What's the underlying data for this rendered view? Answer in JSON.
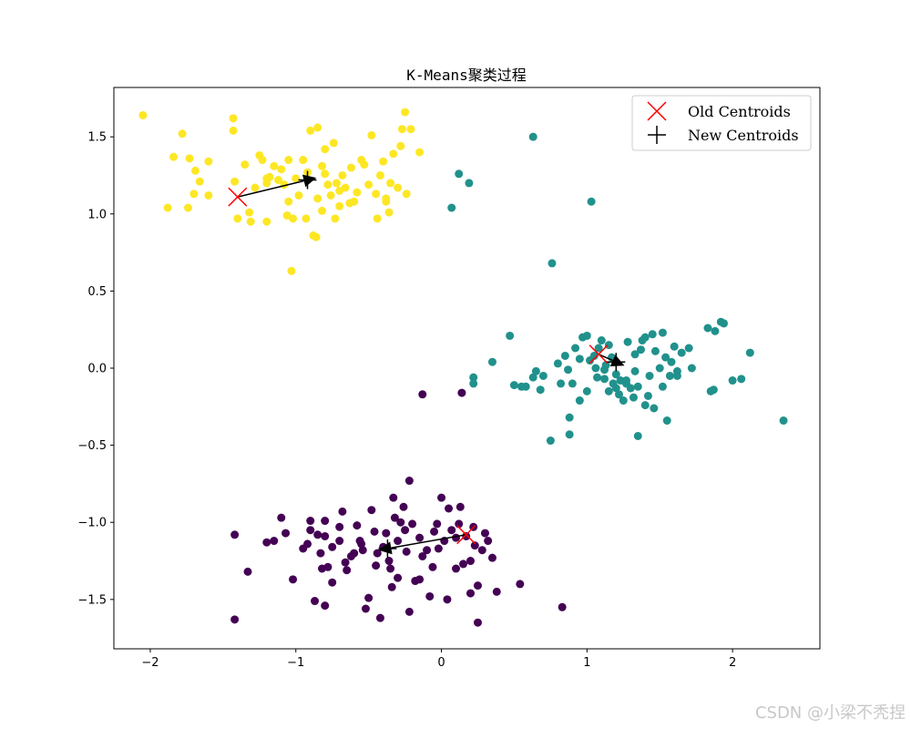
{
  "chart_data": {
    "type": "scatter",
    "title": "K-Means聚类过程",
    "xlabel": "",
    "ylabel": "",
    "xlim": [
      -2.25,
      2.6
    ],
    "ylim": [
      -1.82,
      1.82
    ],
    "xticks": [
      -2,
      -1,
      0,
      1,
      2
    ],
    "xtick_labels": [
      "−2",
      "−1",
      "0",
      "1",
      "2"
    ],
    "yticks": [
      -1.5,
      -1.0,
      -0.5,
      0.0,
      0.5,
      1.0,
      1.5
    ],
    "ytick_labels": [
      "−1.5",
      "−1.0",
      "−0.5",
      "0.0",
      "0.5",
      "1.0",
      "1.5"
    ],
    "grid": false,
    "legend_position": "top-right",
    "colors": {
      "cluster_0": "#440154",
      "cluster_1": "#21918c",
      "cluster_2": "#fde725",
      "old_centroid": "#ff0000",
      "new_centroid": "#000000"
    },
    "series": [
      {
        "cluster": 0,
        "points": [
          [
            -1.42,
            -1.08
          ],
          [
            -1.42,
            -1.63
          ],
          [
            -1.33,
            -1.32
          ],
          [
            -1.2,
            -1.13
          ],
          [
            -1.15,
            -1.12
          ],
          [
            -1.1,
            -0.97
          ],
          [
            -1.07,
            -1.07
          ],
          [
            -1.02,
            -1.37
          ],
          [
            -0.95,
            -1.17
          ],
          [
            -0.9,
            -1.05
          ],
          [
            -0.9,
            -0.99
          ],
          [
            -0.87,
            -1.51
          ],
          [
            -0.85,
            -1.08
          ],
          [
            -0.83,
            -1.2
          ],
          [
            -0.82,
            -1.3
          ],
          [
            -0.8,
            -1.54
          ],
          [
            -0.8,
            -1.09
          ],
          [
            -0.8,
            -0.99
          ],
          [
            -0.78,
            -1.29
          ],
          [
            -0.75,
            -1.39
          ],
          [
            -0.7,
            -1.03
          ],
          [
            -0.68,
            -0.93
          ],
          [
            -0.66,
            -1.26
          ],
          [
            -0.65,
            -1.31
          ],
          [
            -0.62,
            -1.22
          ],
          [
            -0.6,
            -1.2
          ],
          [
            -0.58,
            -1.02
          ],
          [
            -0.56,
            -1.12
          ],
          [
            -0.54,
            -1.18
          ],
          [
            -0.52,
            -1.56
          ],
          [
            -0.5,
            -1.49
          ],
          [
            -0.48,
            -0.92
          ],
          [
            -0.46,
            -1.06
          ],
          [
            -0.44,
            -1.2
          ],
          [
            -0.42,
            -1.62
          ],
          [
            -0.4,
            -1.16
          ],
          [
            -0.38,
            -1.07
          ],
          [
            -0.36,
            -1.25
          ],
          [
            -0.34,
            -1.42
          ],
          [
            -0.33,
            -0.84
          ],
          [
            -0.32,
            -0.97
          ],
          [
            -0.3,
            -1.12
          ],
          [
            -0.3,
            -1.36
          ],
          [
            -0.28,
            -1.0
          ],
          [
            -0.26,
            -0.9
          ],
          [
            -0.25,
            -1.05
          ],
          [
            -0.24,
            -1.19
          ],
          [
            -0.22,
            -1.58
          ],
          [
            -0.22,
            -0.73
          ],
          [
            -0.2,
            -1.01
          ],
          [
            -0.18,
            -1.38
          ],
          [
            -0.15,
            -1.1
          ],
          [
            -0.13,
            -1.22
          ],
          [
            -0.1,
            -1.18
          ],
          [
            -0.08,
            -1.48
          ],
          [
            -0.06,
            -1.29
          ],
          [
            -0.05,
            -1.06
          ],
          [
            -0.03,
            -1.01
          ],
          [
            -0.02,
            -1.17
          ],
          [
            0.0,
            -0.84
          ],
          [
            0.02,
            -1.12
          ],
          [
            0.05,
            -0.91
          ],
          [
            0.07,
            -1.05
          ],
          [
            0.1,
            -1.3
          ],
          [
            0.12,
            -1.01
          ],
          [
            0.13,
            -0.9
          ],
          [
            0.15,
            -1.27
          ],
          [
            0.17,
            -1.09
          ],
          [
            0.2,
            -1.46
          ],
          [
            0.2,
            -1.25
          ],
          [
            0.22,
            -1.03
          ],
          [
            0.23,
            -1.15
          ],
          [
            0.25,
            -1.41
          ],
          [
            0.25,
            -1.65
          ],
          [
            0.28,
            -1.18
          ],
          [
            0.3,
            -1.07
          ],
          [
            0.32,
            -1.12
          ],
          [
            0.35,
            -1.23
          ],
          [
            0.38,
            -1.45
          ],
          [
            0.54,
            -1.4
          ],
          [
            0.83,
            -1.55
          ],
          [
            -0.13,
            -0.17
          ],
          [
            0.14,
            -0.16
          ],
          [
            -0.92,
            -1.14
          ],
          [
            -0.75,
            -1.16
          ],
          [
            -0.55,
            -1.14
          ],
          [
            -0.35,
            -1.3
          ],
          [
            -0.15,
            -1.37
          ],
          [
            0.04,
            -1.5
          ],
          [
            0.1,
            -1.1
          ],
          [
            -0.7,
            -1.12
          ],
          [
            -0.45,
            -1.28
          ]
        ]
      },
      {
        "cluster": 1,
        "points": [
          [
            0.22,
            -0.06
          ],
          [
            0.22,
            -0.1
          ],
          [
            0.35,
            0.04
          ],
          [
            0.47,
            0.21
          ],
          [
            0.5,
            -0.11
          ],
          [
            0.55,
            -0.12
          ],
          [
            0.58,
            -0.12
          ],
          [
            0.63,
            -0.06
          ],
          [
            0.65,
            -0.02
          ],
          [
            0.68,
            -0.14
          ],
          [
            0.7,
            -0.05
          ],
          [
            0.75,
            -0.47
          ],
          [
            0.8,
            0.03
          ],
          [
            0.82,
            -0.1
          ],
          [
            0.85,
            0.08
          ],
          [
            0.87,
            -0.01
          ],
          [
            0.88,
            -0.32
          ],
          [
            0.88,
            -0.43
          ],
          [
            0.9,
            -0.1
          ],
          [
            0.92,
            0.13
          ],
          [
            0.95,
            0.06
          ],
          [
            0.95,
            -0.21
          ],
          [
            0.97,
            0.2
          ],
          [
            1.0,
            -0.15
          ],
          [
            1.0,
            0.21
          ],
          [
            1.02,
            0.05
          ],
          [
            1.05,
            0.08
          ],
          [
            1.07,
            -0.06
          ],
          [
            1.08,
            0.13
          ],
          [
            1.1,
            0.18
          ],
          [
            1.12,
            -0.01
          ],
          [
            1.13,
            0.02
          ],
          [
            1.15,
            0.15
          ],
          [
            1.17,
            0.07
          ],
          [
            1.2,
            -0.04
          ],
          [
            1.2,
            -0.13
          ],
          [
            1.22,
            -0.17
          ],
          [
            1.23,
            -0.08
          ],
          [
            1.25,
            -0.21
          ],
          [
            1.27,
            -0.08
          ],
          [
            1.28,
            0.17
          ],
          [
            1.3,
            -0.13
          ],
          [
            1.32,
            -0.19
          ],
          [
            1.33,
            0.09
          ],
          [
            1.35,
            -0.12
          ],
          [
            1.35,
            -0.44
          ],
          [
            1.37,
            0.12
          ],
          [
            1.38,
            0.18
          ],
          [
            1.4,
            0.2
          ],
          [
            1.4,
            -0.24
          ],
          [
            1.42,
            -0.18
          ],
          [
            1.43,
            -0.05
          ],
          [
            1.45,
            0.22
          ],
          [
            1.46,
            -0.26
          ],
          [
            1.47,
            0.11
          ],
          [
            1.5,
            0.0
          ],
          [
            1.52,
            0.23
          ],
          [
            1.52,
            -0.12
          ],
          [
            1.54,
            0.07
          ],
          [
            1.55,
            -0.34
          ],
          [
            1.57,
            -0.05
          ],
          [
            1.58,
            0.04
          ],
          [
            1.6,
            0.14
          ],
          [
            1.62,
            -0.02
          ],
          [
            1.62,
            -0.05
          ],
          [
            1.65,
            0.1
          ],
          [
            1.7,
            0.13
          ],
          [
            1.72,
            0.0
          ],
          [
            1.83,
            0.26
          ],
          [
            1.85,
            -0.15
          ],
          [
            1.87,
            -0.14
          ],
          [
            1.88,
            0.24
          ],
          [
            1.92,
            0.3
          ],
          [
            1.94,
            0.29
          ],
          [
            2.0,
            -0.08
          ],
          [
            2.06,
            -0.07
          ],
          [
            2.12,
            0.1
          ],
          [
            2.35,
            -0.34
          ],
          [
            0.63,
            1.5
          ],
          [
            1.03,
            1.08
          ],
          [
            0.76,
            0.68
          ],
          [
            0.07,
            1.04
          ],
          [
            0.12,
            1.26
          ],
          [
            0.19,
            1.2
          ],
          [
            1.06,
            0.0
          ],
          [
            1.12,
            -0.07
          ],
          [
            1.18,
            -0.1
          ],
          [
            1.15,
            -0.15
          ],
          [
            1.27,
            -0.1
          ],
          [
            1.33,
            -0.02
          ]
        ]
      },
      {
        "cluster": 2,
        "points": [
          [
            -2.05,
            1.64
          ],
          [
            -1.88,
            1.04
          ],
          [
            -1.84,
            1.37
          ],
          [
            -1.78,
            1.52
          ],
          [
            -1.74,
            1.04
          ],
          [
            -1.73,
            1.36
          ],
          [
            -1.7,
            1.13
          ],
          [
            -1.69,
            1.28
          ],
          [
            -1.66,
            1.21
          ],
          [
            -1.6,
            1.34
          ],
          [
            -1.6,
            1.12
          ],
          [
            -1.43,
            1.54
          ],
          [
            -1.43,
            1.62
          ],
          [
            -1.42,
            1.21
          ],
          [
            -1.4,
            0.97
          ],
          [
            -1.35,
            1.32
          ],
          [
            -1.32,
            1.01
          ],
          [
            -1.31,
            0.95
          ],
          [
            -1.28,
            1.17
          ],
          [
            -1.25,
            1.38
          ],
          [
            -1.23,
            1.35
          ],
          [
            -1.2,
            1.2
          ],
          [
            -1.2,
            0.95
          ],
          [
            -1.18,
            1.24
          ],
          [
            -1.15,
            1.31
          ],
          [
            -1.12,
            1.22
          ],
          [
            -1.1,
            1.29
          ],
          [
            -1.08,
            1.19
          ],
          [
            -1.06,
            0.99
          ],
          [
            -1.05,
            1.35
          ],
          [
            -1.02,
            0.97
          ],
          [
            -1.03,
            0.63
          ],
          [
            -1.0,
            1.23
          ],
          [
            -0.98,
            1.12
          ],
          [
            -0.95,
            1.35
          ],
          [
            -0.93,
            0.97
          ],
          [
            -0.92,
            1.27
          ],
          [
            -0.9,
            1.54
          ],
          [
            -0.88,
            0.86
          ],
          [
            -0.86,
            0.85
          ],
          [
            -0.85,
            1.56
          ],
          [
            -0.82,
            1.02
          ],
          [
            -0.82,
            1.31
          ],
          [
            -0.8,
            1.42
          ],
          [
            -0.8,
            1.26
          ],
          [
            -0.78,
            1.19
          ],
          [
            -0.76,
            1.12
          ],
          [
            -0.74,
            1.46
          ],
          [
            -0.73,
            0.97
          ],
          [
            -0.72,
            1.2
          ],
          [
            -0.7,
            1.05
          ],
          [
            -0.68,
            1.25
          ],
          [
            -0.66,
            1.17
          ],
          [
            -0.63,
            1.07
          ],
          [
            -0.6,
            1.08
          ],
          [
            -0.58,
            1.14
          ],
          [
            -0.55,
            1.35
          ],
          [
            -0.53,
            1.32
          ],
          [
            -0.5,
            1.19
          ],
          [
            -0.48,
            1.51
          ],
          [
            -0.45,
            1.13
          ],
          [
            -0.44,
            0.97
          ],
          [
            -0.42,
            1.25
          ],
          [
            -0.4,
            1.34
          ],
          [
            -0.38,
            1.08
          ],
          [
            -0.36,
            1.01
          ],
          [
            -0.35,
            1.2
          ],
          [
            -0.33,
            1.39
          ],
          [
            -0.3,
            1.17
          ],
          [
            -0.28,
            1.44
          ],
          [
            -0.27,
            1.55
          ],
          [
            -0.25,
            1.66
          ],
          [
            -0.24,
            1.13
          ],
          [
            -0.21,
            1.55
          ],
          [
            -0.15,
            1.4
          ],
          [
            -1.2,
            1.23
          ],
          [
            -0.85,
            1.1
          ],
          [
            -0.62,
            1.3
          ],
          [
            -0.38,
            1.1
          ],
          [
            -1.05,
            1.08
          ],
          [
            -0.7,
            1.15
          ]
        ]
      }
    ],
    "old_centroids": [
      [
        -1.4,
        1.11
      ],
      [
        1.08,
        0.09
      ],
      [
        0.17,
        -1.08
      ]
    ],
    "new_centroids": [
      [
        -0.92,
        1.22
      ],
      [
        1.2,
        0.04
      ],
      [
        -0.37,
        -1.17
      ]
    ],
    "legend": [
      {
        "label": "Old Centroids",
        "marker": "x",
        "color": "#ff0000"
      },
      {
        "label": "New Centroids",
        "marker": "+",
        "color": "#000000"
      }
    ]
  },
  "watermark": "CSDN @小梁不秃捏"
}
